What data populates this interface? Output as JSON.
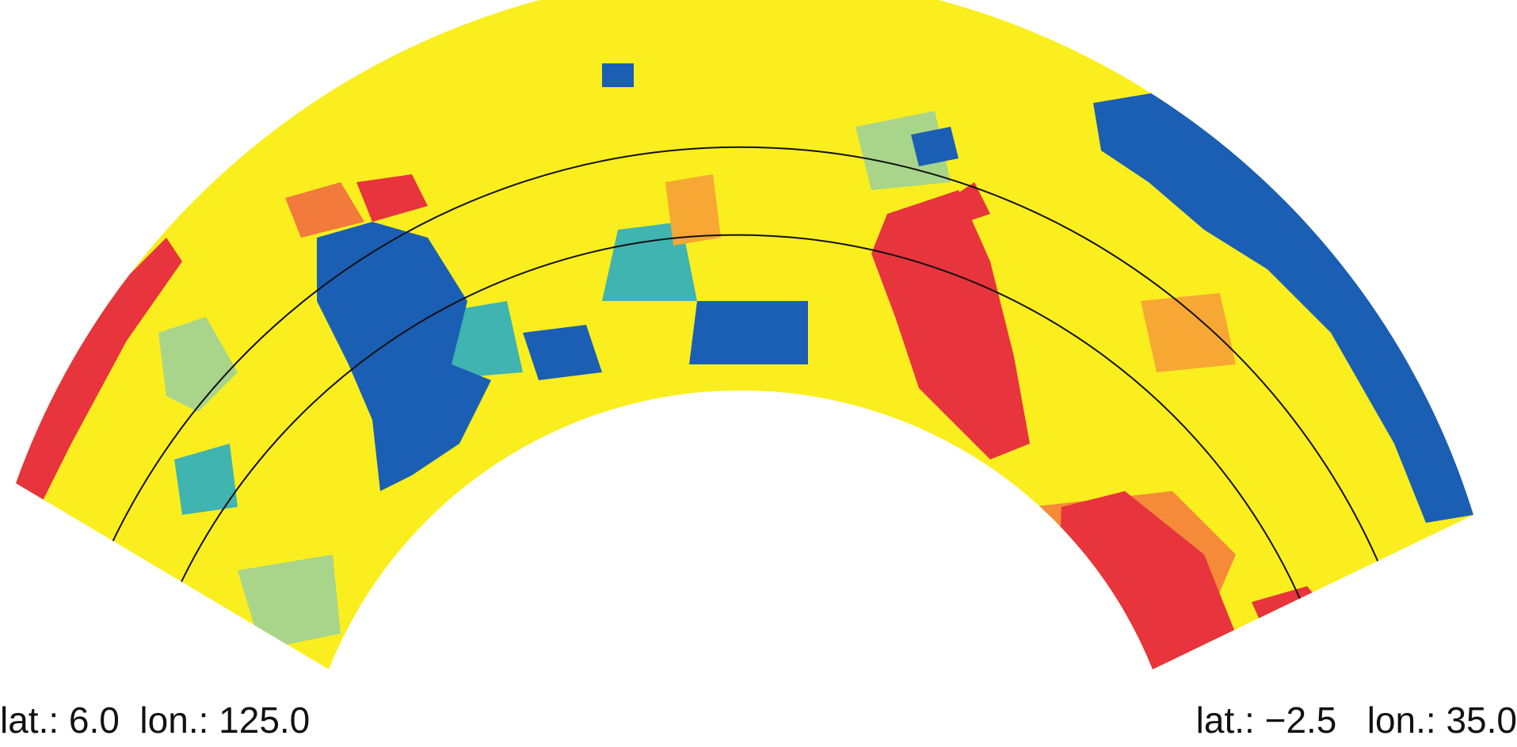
{
  "labels": {
    "left": "lat.: 6.0  lon.: 125.0",
    "right": "lat.: −2.5   lon.: 35.0"
  }
}
